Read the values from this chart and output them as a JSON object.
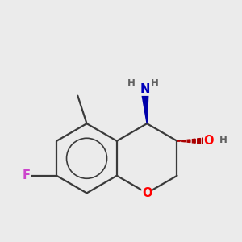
{
  "background_color": "#ebebeb",
  "bond_color": "#3a3a3a",
  "bond_width": 1.6,
  "atom_colors": {
    "O": "#ff0000",
    "N": "#0000bb",
    "F": "#cc44cc",
    "C": "#3a3a3a",
    "H": "#606060"
  },
  "font_size_atom": 10.5,
  "font_size_H": 8.5,
  "aromatic_circle_ratio": 0.58,
  "scale": 1.35
}
